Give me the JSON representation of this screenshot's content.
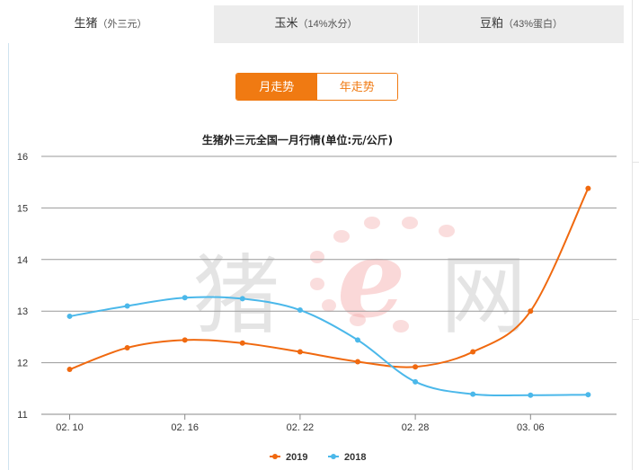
{
  "tabs": [
    {
      "label": "生猪",
      "sub": "（外三元）"
    },
    {
      "label": "玉米",
      "sub": "（14%水分）"
    },
    {
      "label": "豆粕",
      "sub": "（43%蛋白）"
    }
  ],
  "toggle": {
    "monthly": "月走势",
    "yearly": "年走势"
  },
  "watermark": "猪e网",
  "colors": {
    "series_2019": "#f0690f",
    "series_2018": "#4bb8ea",
    "accent": "#f07a12"
  },
  "chart_data": {
    "type": "line",
    "title": "生猪外三元全国一月行情(单位:元/公斤)",
    "ylim": [
      11,
      16
    ],
    "yticks": [
      11,
      12,
      13,
      14,
      15,
      16
    ],
    "xlim": [
      0,
      9.5
    ],
    "xticks": [
      {
        "pos": 0,
        "label": "02. 10"
      },
      {
        "pos": 2,
        "label": "02. 16"
      },
      {
        "pos": 4,
        "label": "02. 22"
      },
      {
        "pos": 6,
        "label": "02. 28"
      },
      {
        "pos": 8,
        "label": "03. 06"
      }
    ],
    "grid": true,
    "legend_position": "bottom",
    "series": [
      {
        "name": "2019",
        "color": "#f0690f",
        "x": [
          0,
          1,
          2,
          3,
          4,
          5,
          6,
          7,
          8,
          9
        ],
        "y": [
          11.87,
          12.29,
          12.44,
          12.38,
          12.21,
          12.02,
          11.92,
          12.21,
          13.0,
          15.38
        ]
      },
      {
        "name": "2018",
        "color": "#4bb8ea",
        "x": [
          0,
          1,
          2,
          3,
          4,
          5,
          6,
          7,
          8,
          9
        ],
        "y": [
          12.9,
          13.1,
          13.26,
          13.24,
          13.02,
          12.44,
          11.63,
          11.39,
          11.37,
          11.38
        ]
      }
    ]
  }
}
